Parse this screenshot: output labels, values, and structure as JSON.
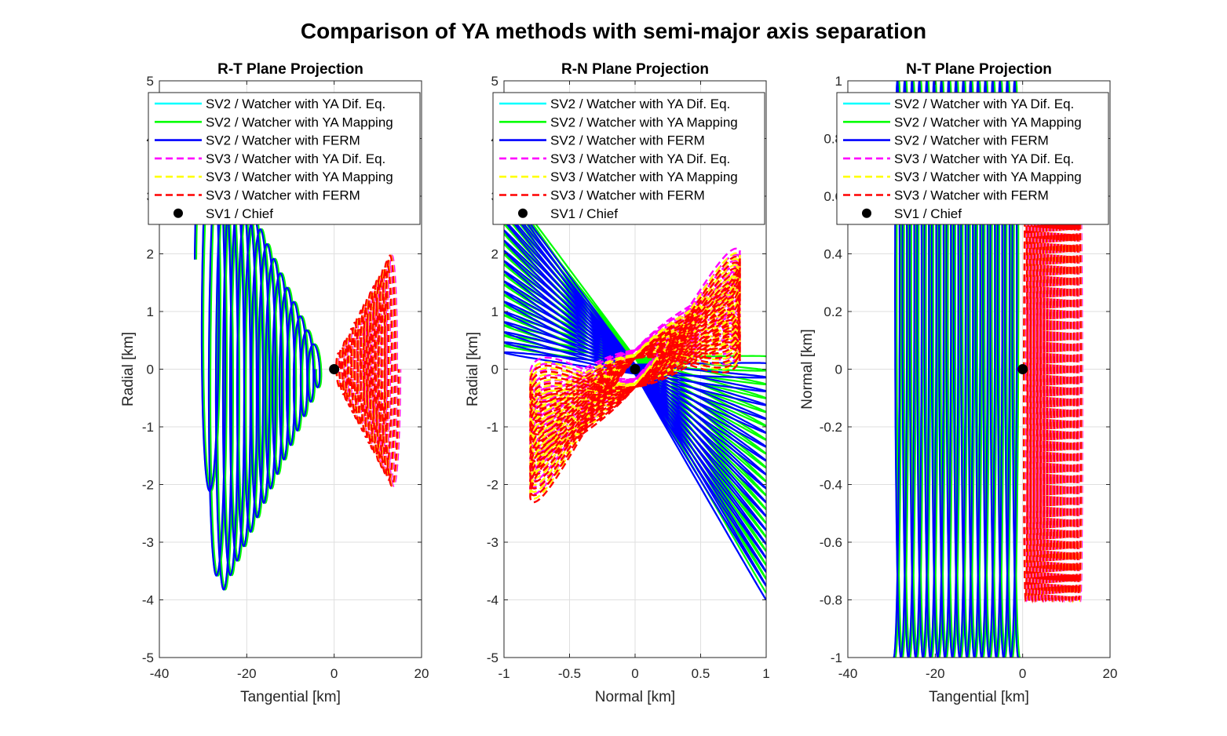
{
  "figure": {
    "title": "Comparison of YA methods with semi-major axis separation"
  },
  "colors": {
    "sv2_ya_dif": "#00ffff",
    "sv2_ya_map": "#00ff00",
    "sv2_ferm": "#0000ff",
    "sv3_ya_dif": "#ff00ff",
    "sv3_ya_map": "#ffff00",
    "sv3_ferm": "#ff0000",
    "chief": "#000000",
    "grid": "#dfdfdf"
  },
  "legend": [
    {
      "label": "SV2 / Watcher with YA Dif. Eq.",
      "color": "#00ffff",
      "style": "solid"
    },
    {
      "label": "SV2 / Watcher with YA Mapping",
      "color": "#00ff00",
      "style": "solid"
    },
    {
      "label": "SV2 / Watcher with FERM",
      "color": "#0000ff",
      "style": "solid"
    },
    {
      "label": "SV3 / Watcher with YA Dif. Eq.",
      "color": "#ff00ff",
      "style": "dashed"
    },
    {
      "label": "SV3 / Watcher with YA Mapping",
      "color": "#ffff00",
      "style": "dashed"
    },
    {
      "label": "SV3 / Watcher with FERM",
      "color": "#ff0000",
      "style": "dashed"
    },
    {
      "label": "SV1 / Chief",
      "color": "#000000",
      "style": "marker"
    }
  ],
  "chart_data": [
    {
      "type": "line",
      "title": "R-T Plane Projection",
      "xlabel": "Tangential [km]",
      "ylabel": "Radial [km]",
      "xlim": [
        -40,
        20
      ],
      "ylim": [
        -5,
        5
      ],
      "xticks": [
        -40,
        -20,
        0,
        20
      ],
      "yticks": [
        -5,
        -4,
        -3,
        -2,
        -1,
        0,
        1,
        2,
        3,
        4,
        5
      ],
      "grid": true,
      "legend_position": "top",
      "series": [
        {
          "name": "SV2 / Watcher with FERM",
          "kind": "sv2",
          "x_range": [
            -31.5,
            -2.5
          ],
          "envelope_top": [
            [
              -31.5,
              4.8
            ],
            [
              -2.5,
              0.25
            ]
          ],
          "envelope_bottom": [
            [
              -31.5,
              -1.0
            ],
            [
              -28,
              -4.0
            ],
            [
              -2.5,
              -0.25
            ]
          ],
          "loops": 17
        },
        {
          "name": "SV3 / Watcher with FERM",
          "kind": "sv3",
          "x_range": [
            0,
            15
          ],
          "y_max": 2.0,
          "y_min": -2.1,
          "loops": 17
        },
        {
          "name": "SV1 / Chief",
          "kind": "chief",
          "points": [
            [
              0,
              0
            ]
          ]
        }
      ]
    },
    {
      "type": "line",
      "title": "R-N Plane Projection",
      "xlabel": "Normal [km]",
      "ylabel": "Radial [km]",
      "xlim": [
        -1,
        1
      ],
      "ylim": [
        -5,
        5
      ],
      "xticks": [
        -1,
        -0.5,
        0,
        0.5,
        1
      ],
      "yticks": [
        -5,
        -4,
        -3,
        -2,
        -1,
        0,
        1,
        2,
        3,
        4,
        5
      ],
      "grid": true,
      "legend_position": "top",
      "series": [
        {
          "name": "SV2 / Watcher with FERM",
          "kind": "sv2",
          "left_fan_y": [
            0.2,
            3.2
          ],
          "right_fan_y": [
            0.1,
            -4.0
          ],
          "loops": 17
        },
        {
          "name": "SV3 / Watcher with FERM",
          "kind": "sv3",
          "x_range": [
            -0.8,
            0.8
          ],
          "right_y_max": 2.0,
          "left_y_min": -2.2,
          "loops": 17
        },
        {
          "name": "SV1 / Chief",
          "kind": "chief",
          "points": [
            [
              0,
              0
            ]
          ]
        }
      ]
    },
    {
      "type": "line",
      "title": "N-T Plane Projection",
      "xlabel": "Tangential [km]",
      "ylabel": "Normal [km]",
      "xlim": [
        -40,
        20
      ],
      "ylim": [
        -1,
        1
      ],
      "xticks": [
        -40,
        -20,
        0,
        20
      ],
      "yticks": [
        -1,
        -0.8,
        -0.6,
        -0.4,
        -0.2,
        0,
        0.2,
        0.4,
        0.6,
        0.8,
        1
      ],
      "grid": true,
      "legend_position": "top",
      "series": [
        {
          "name": "SV2 / Watcher with FERM",
          "kind": "sv2",
          "x_range": [
            -31.5,
            0
          ],
          "y_range": [
            -1,
            1
          ],
          "loops": 17
        },
        {
          "name": "SV3 / Watcher with FERM",
          "kind": "sv3",
          "x_range": [
            0,
            14
          ],
          "y_range": [
            -0.8,
            0.8
          ],
          "loops": 17
        },
        {
          "name": "SV1 / Chief",
          "kind": "chief",
          "points": [
            [
              0,
              0
            ]
          ]
        }
      ]
    }
  ]
}
